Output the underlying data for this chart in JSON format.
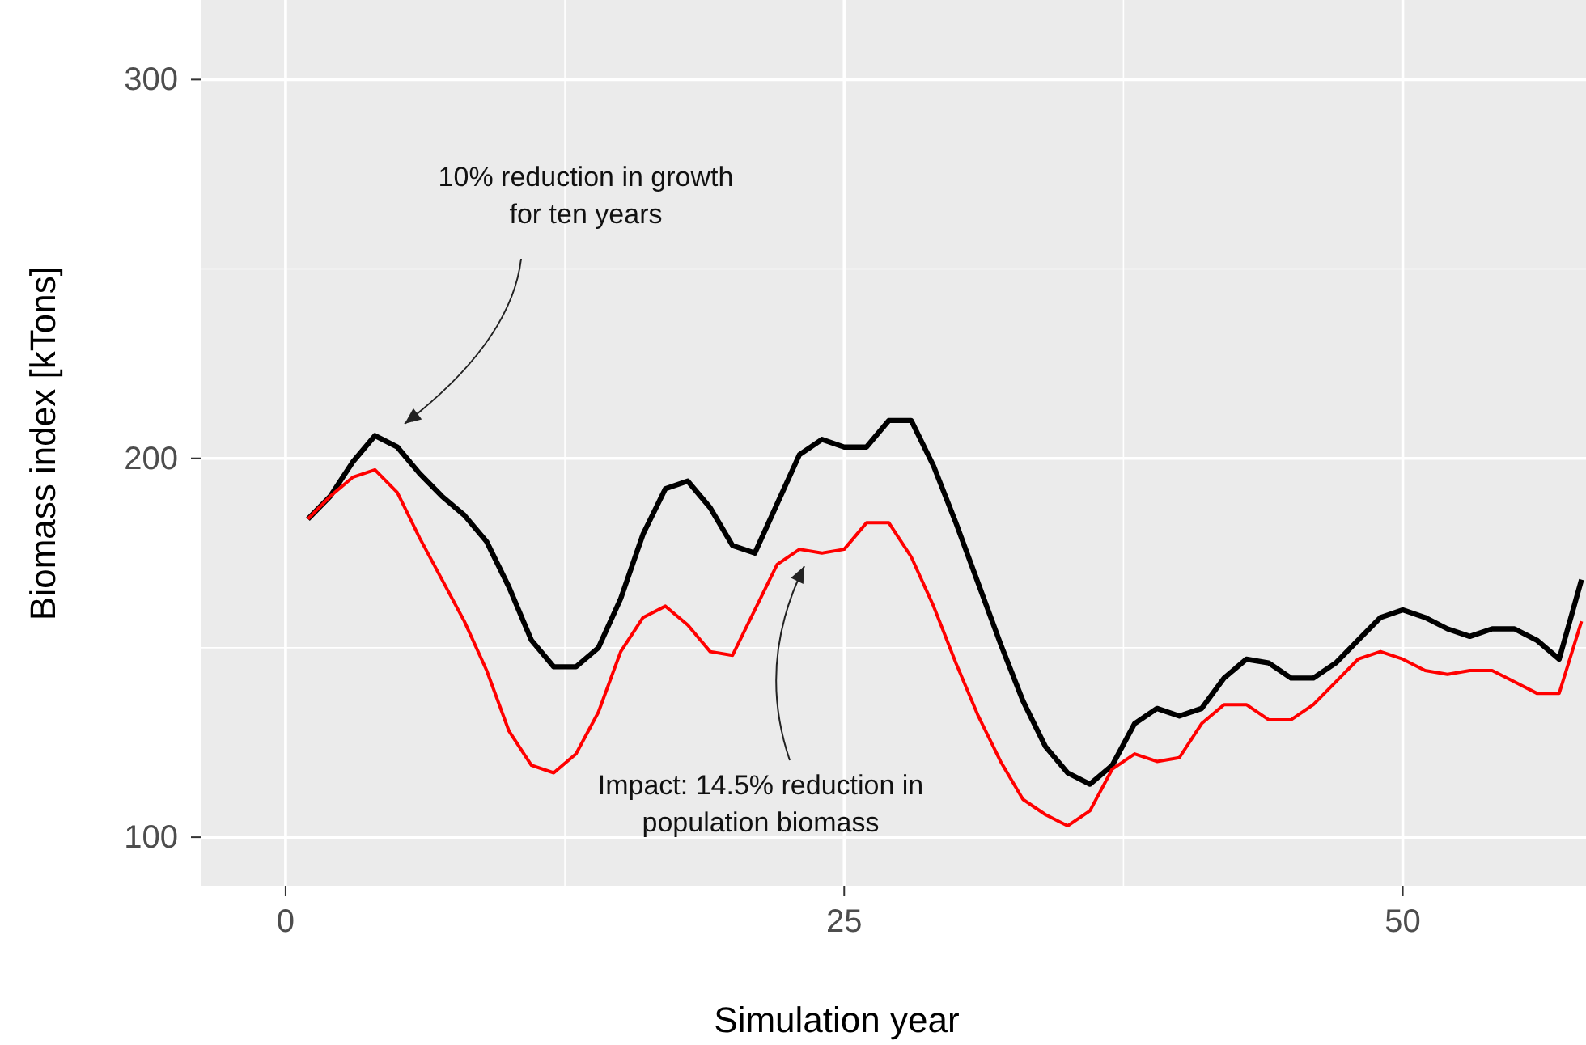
{
  "chart_data": {
    "type": "line",
    "xlabel": "Simulation year",
    "ylabel": "Biomass index [kTons]",
    "x": [
      1,
      2,
      3,
      4,
      5,
      6,
      7,
      8,
      9,
      10,
      11,
      12,
      13,
      14,
      15,
      16,
      17,
      18,
      19,
      20,
      21,
      22,
      23,
      24,
      25,
      26,
      27,
      28,
      29,
      30,
      31,
      32,
      33,
      34,
      35,
      36,
      37,
      38,
      39,
      40,
      41,
      42,
      43,
      44,
      45,
      46,
      47,
      48,
      49,
      50,
      51,
      52,
      53,
      54,
      55,
      56,
      57,
      58
    ],
    "series": [
      {
        "color": "#000000",
        "values": [
          184,
          190,
          199,
          206,
          203,
          196,
          190,
          185,
          178,
          166,
          152,
          145,
          145,
          150,
          163,
          180,
          192,
          194,
          187,
          177,
          175,
          188,
          201,
          205,
          203,
          203,
          210,
          210,
          198,
          183,
          167,
          151,
          136,
          124,
          117,
          114,
          119,
          130,
          134,
          132,
          134,
          142,
          147,
          146,
          142,
          142,
          146,
          152,
          158,
          160,
          158,
          155,
          153,
          155,
          155,
          152,
          147,
          168
        ]
      },
      {
        "color": "#ff0000",
        "values": [
          184,
          190,
          195,
          197,
          191,
          179,
          168,
          157,
          144,
          128,
          119,
          117,
          122,
          133,
          149,
          158,
          161,
          156,
          149,
          148,
          160,
          172,
          176,
          175,
          176,
          183,
          183,
          174,
          161,
          146,
          132,
          120,
          110,
          106,
          103,
          107,
          118,
          122,
          120,
          121,
          130,
          135,
          135,
          131,
          131,
          135,
          141,
          147,
          149,
          147,
          144,
          143,
          144,
          144,
          141,
          138,
          138,
          157
        ]
      }
    ],
    "xlim": [
      -3.8,
      58.2
    ],
    "ylim": [
      87,
      321
    ],
    "xticks": [
      0,
      25,
      50
    ],
    "yticks": [
      100,
      200,
      300
    ],
    "grid": true,
    "annotations": [
      "10% reduction in growth\nfor ten years",
      "Impact: 14.5% reduction in\npopulation biomass"
    ]
  }
}
